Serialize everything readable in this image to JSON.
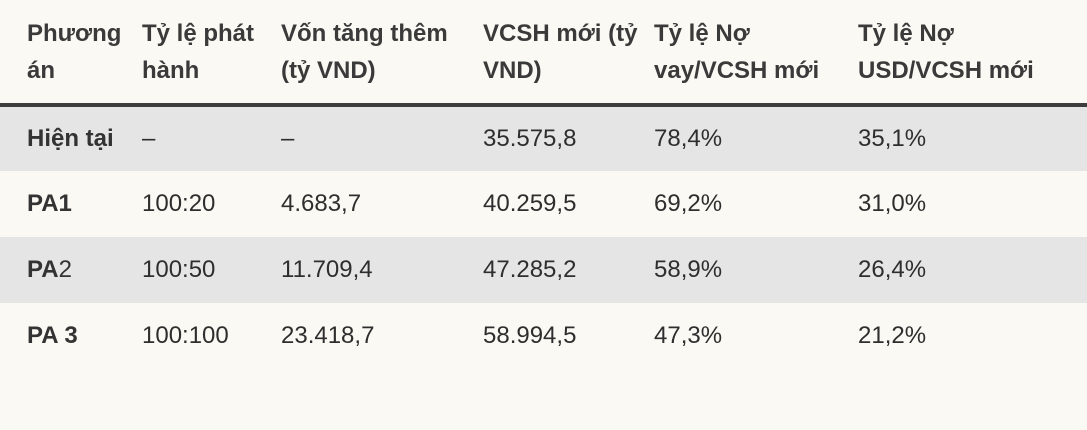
{
  "table": {
    "headers": [
      "Phương án",
      "Tỷ lệ phát hành",
      "Vốn tăng thêm (tỷ VND)",
      "VCSH mới (tỷ VND)",
      "Tỷ lệ Nợ vay/VCSH mới",
      "Tỷ lệ Nợ USD/VCSH mới"
    ],
    "rows": [
      [
        "Hiện tại",
        "–",
        "–",
        "35.575,8",
        "78,4%",
        "35,1%"
      ],
      [
        "PA1",
        "100:20",
        "4.683,7",
        "40.259,5",
        "69,2%",
        "31,0%"
      ],
      [
        "PA2",
        "100:50",
        "11.709,4",
        "47.285,2",
        "58,9%",
        "26,4%"
      ],
      [
        "PA 3",
        "100:100",
        "23.418,7",
        "58.994,5",
        "47,3%",
        "21,2%"
      ]
    ],
    "row2_label_parts": [
      "PA",
      "2"
    ]
  }
}
